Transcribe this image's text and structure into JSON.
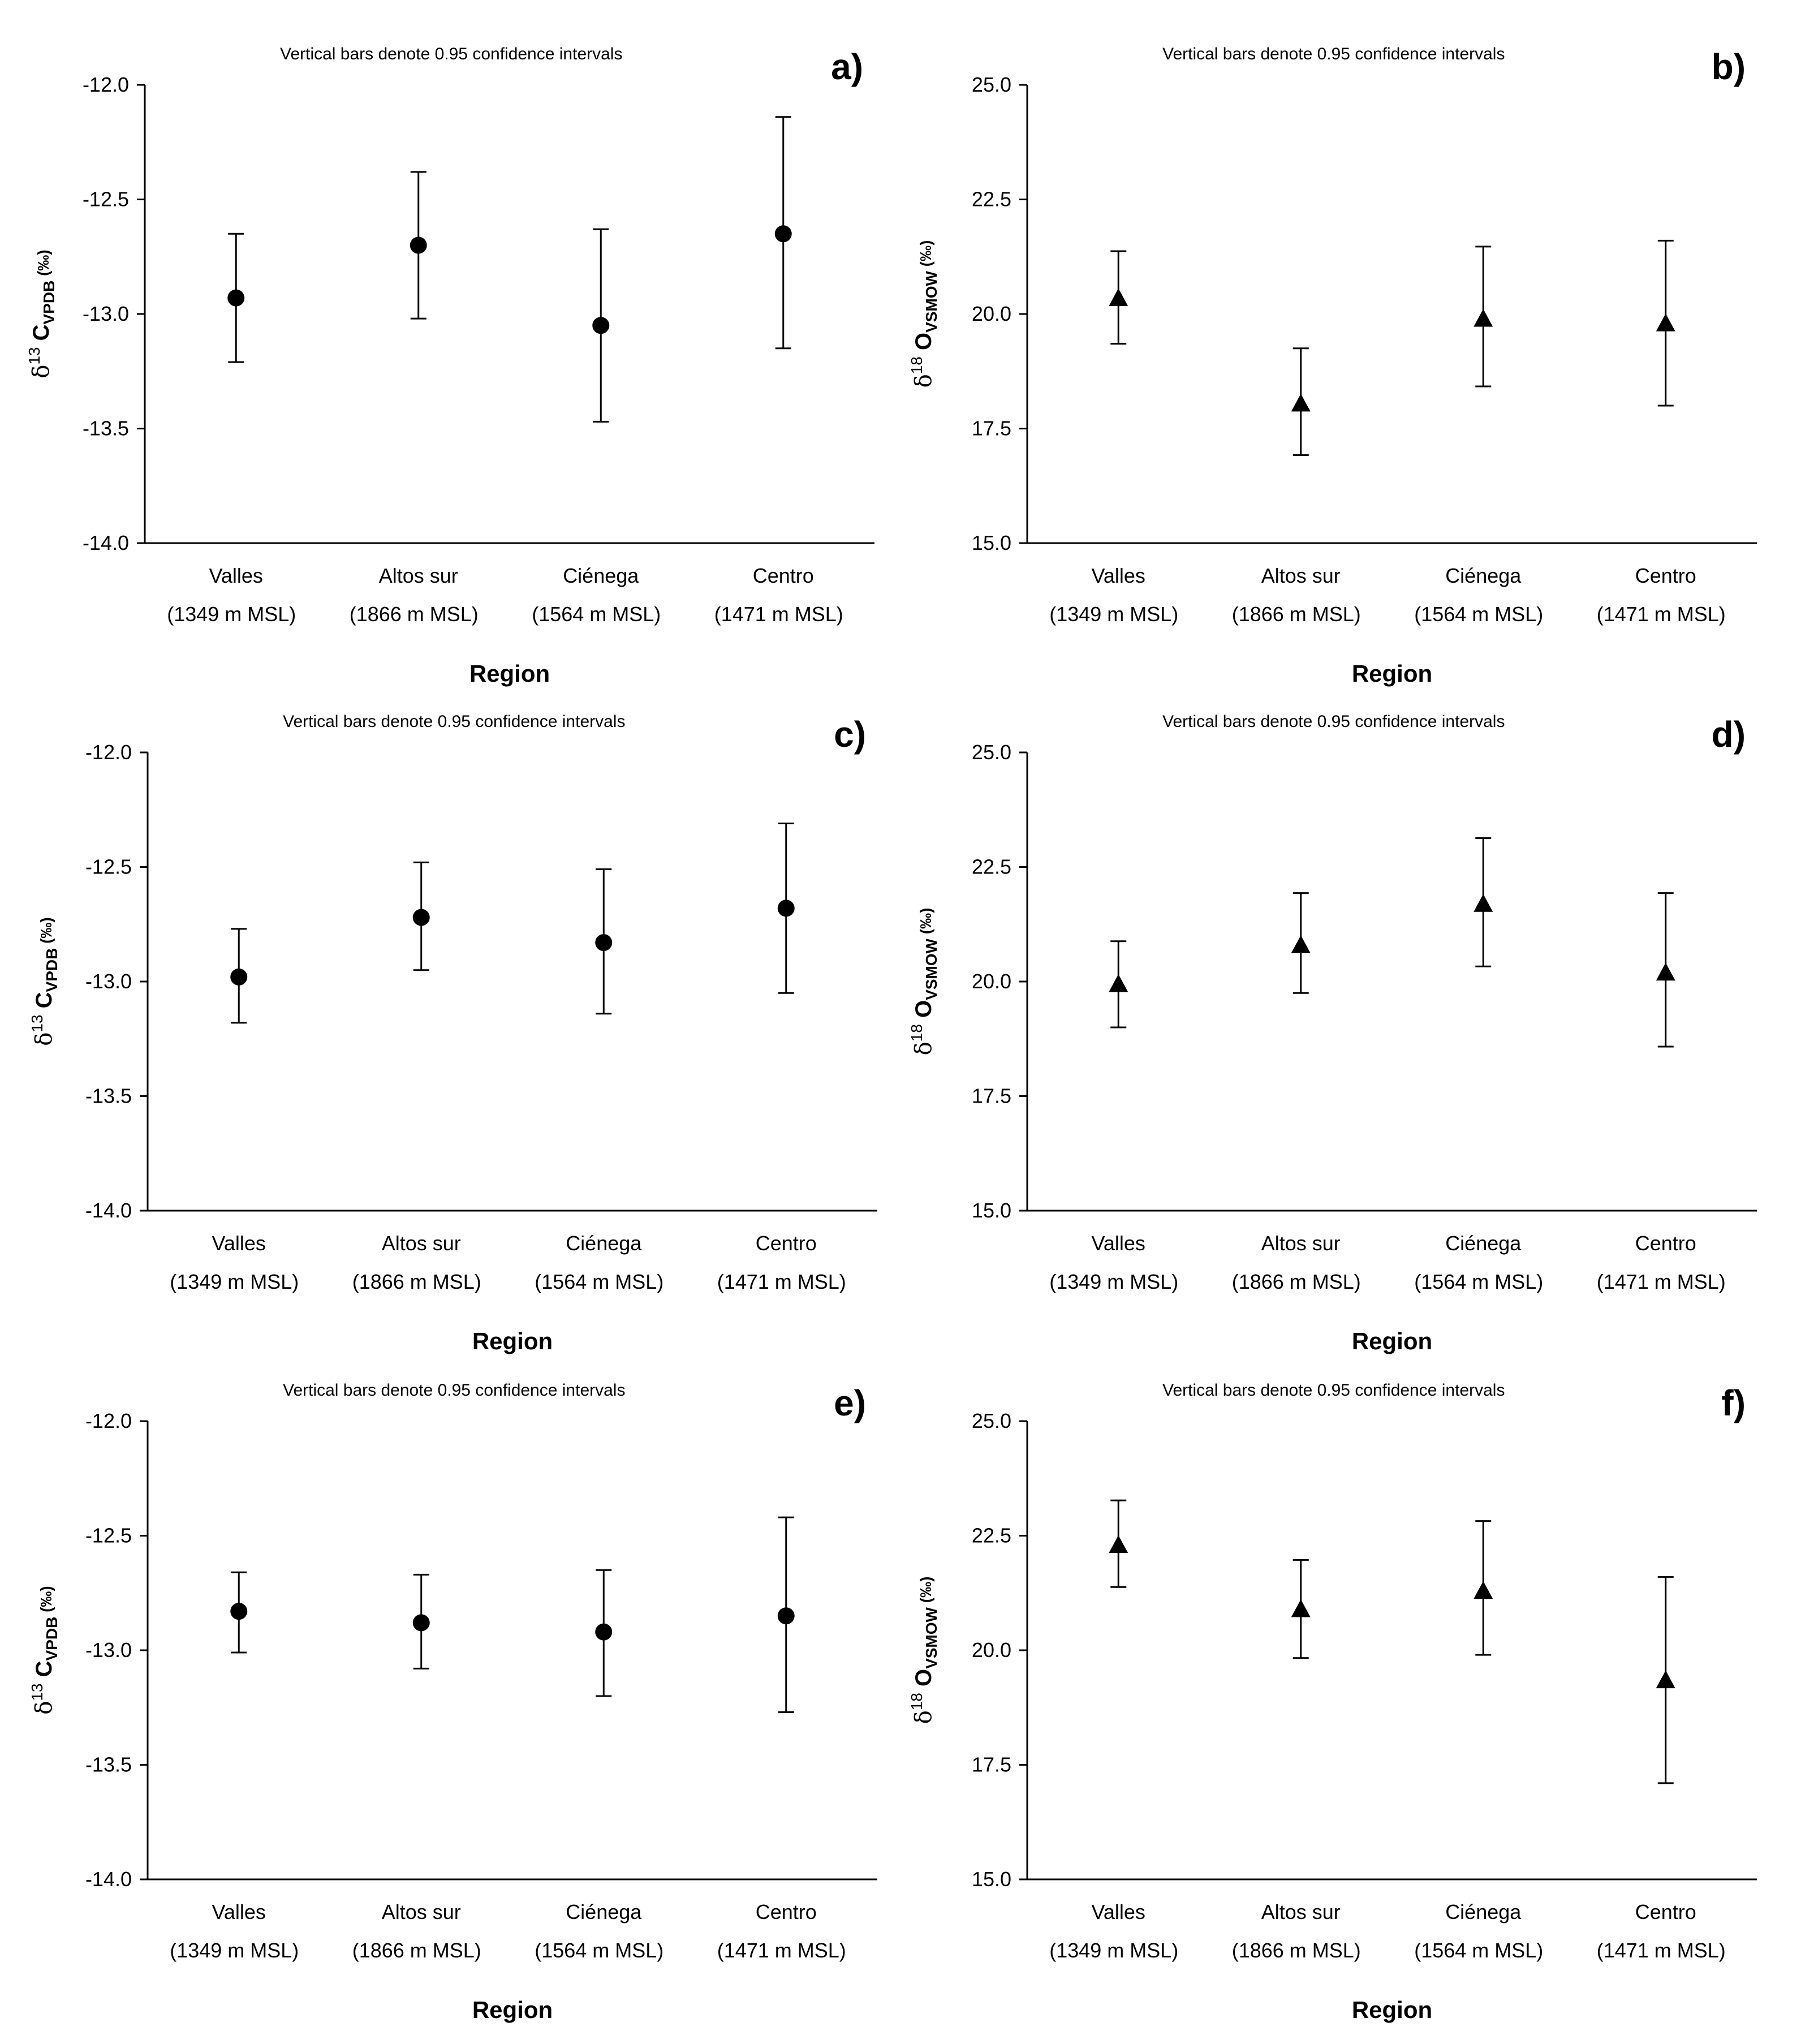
{
  "chart_data": [
    {
      "panel": "a)",
      "type": "scatter",
      "note": "Vertical bars denote 0.95 confidence intervals",
      "categories": [
        "Valles",
        "Altos sur",
        "Ciénega",
        "Centro"
      ],
      "sublabels": [
        "(1349 m MSL)",
        "(1866 m MSL)",
        "(1564 m MSL)",
        "(1471 m MSL)"
      ],
      "xlabel": "Region",
      "ylabel": {
        "prefix": "δ",
        "sup": "13",
        "main": " C",
        "sub": "VPDB",
        "suffix": " (‰)"
      },
      "ylim": [
        -14.0,
        -12.0
      ],
      "yticks": [
        "-14.0",
        "-13.5",
        "-13.0",
        "-12.5",
        "-12.0"
      ],
      "marker": "circle",
      "values": [
        -12.93,
        -12.7,
        -13.05,
        -12.65
      ],
      "ci_low": [
        -13.21,
        -13.02,
        -13.47,
        -13.15
      ],
      "ci_high": [
        -12.65,
        -12.38,
        -12.63,
        -12.14
      ]
    },
    {
      "panel": "b)",
      "type": "scatter",
      "note": "Vertical bars denote 0.95 confidence intervals",
      "categories": [
        "Valles",
        "Altos sur",
        "Ciénega",
        "Centro"
      ],
      "sublabels": [
        "(1349 m MSL)",
        "(1866 m MSL)",
        "(1564 m MSL)",
        "(1471 m MSL)"
      ],
      "xlabel": "Region",
      "ylabel": {
        "prefix": "δ",
        "sup": "18",
        "main": " O",
        "sub": "VSMOW",
        "suffix": " (‰)"
      },
      "ylim": [
        15.0,
        25.0
      ],
      "yticks": [
        "15.0",
        "17.5",
        "20.0",
        "22.5",
        "25.0"
      ],
      "marker": "triangle",
      "values": [
        20.35,
        18.05,
        19.9,
        19.8
      ],
      "ci_low": [
        19.35,
        16.92,
        18.42,
        18.0
      ],
      "ci_high": [
        21.37,
        19.25,
        21.47,
        21.6
      ]
    },
    {
      "panel": "c)",
      "type": "scatter",
      "note": "Vertical bars denote 0.95 confidence intervals",
      "categories": [
        "Valles",
        "Altos sur",
        "Ciénega",
        "Centro"
      ],
      "sublabels": [
        "(1349 m MSL)",
        "(1866 m MSL)",
        "(1564 m MSL)",
        "(1471 m MSL)"
      ],
      "xlabel": "Region",
      "ylabel": {
        "prefix": "δ",
        "sup": "13",
        "main": " C",
        "sub": "VPDB",
        "suffix": " (‰)"
      },
      "ylim": [
        -14.0,
        -12.0
      ],
      "yticks": [
        "-14.0",
        "-13.5",
        "-13.0",
        "-12.5",
        "-12.0"
      ],
      "marker": "circle",
      "values": [
        -12.98,
        -12.72,
        -12.83,
        -12.68
      ],
      "ci_low": [
        -13.18,
        -12.95,
        -13.14,
        -13.05
      ],
      "ci_high": [
        -12.77,
        -12.48,
        -12.51,
        -12.31
      ]
    },
    {
      "panel": "d)",
      "type": "scatter",
      "note": "Vertical bars denote 0.95 confidence intervals",
      "categories": [
        "Valles",
        "Altos sur",
        "Ciénega",
        "Centro"
      ],
      "sublabels": [
        "(1349 m MSL)",
        "(1866 m MSL)",
        "(1564 m MSL)",
        "(1471 m MSL)"
      ],
      "xlabel": "Region",
      "ylabel": {
        "prefix": "δ",
        "sup": "18",
        "main": " O",
        "sub": "VSMOW",
        "suffix": " (‰)"
      },
      "ylim": [
        15.0,
        25.0
      ],
      "yticks": [
        "15.0",
        "17.5",
        "20.0",
        "22.5",
        "25.0"
      ],
      "marker": "triangle",
      "values": [
        19.95,
        20.8,
        21.7,
        20.2
      ],
      "ci_low": [
        19.0,
        19.75,
        20.33,
        18.58
      ],
      "ci_high": [
        20.88,
        21.93,
        23.13,
        21.93
      ]
    },
    {
      "panel": "e)",
      "type": "scatter",
      "note": "Vertical bars denote 0.95 confidence intervals",
      "categories": [
        "Valles",
        "Altos sur",
        "Ciénega",
        "Centro"
      ],
      "sublabels": [
        "(1349 m MSL)",
        "(1866 m MSL)",
        "(1564 m MSL)",
        "(1471 m MSL)"
      ],
      "xlabel": "Region",
      "ylabel": {
        "prefix": "δ",
        "sup": "13",
        "main": " C",
        "sub": "VPDB",
        "suffix": " (‰)"
      },
      "ylim": [
        -14.0,
        -12.0
      ],
      "yticks": [
        "-14.0",
        "-13.5",
        "-13.0",
        "-12.5",
        "-12.0"
      ],
      "marker": "circle",
      "values": [
        -12.83,
        -12.88,
        -12.92,
        -12.85
      ],
      "ci_low": [
        -13.01,
        -13.08,
        -13.2,
        -13.27
      ],
      "ci_high": [
        -12.66,
        -12.67,
        -12.65,
        -12.42
      ]
    },
    {
      "panel": "f)",
      "type": "scatter",
      "note": "Vertical bars denote 0.95 confidence intervals",
      "categories": [
        "Valles",
        "Altos sur",
        "Ciénega",
        "Centro"
      ],
      "sublabels": [
        "(1349 m MSL)",
        "(1866 m MSL)",
        "(1564 m MSL)",
        "(1471 m MSL)"
      ],
      "xlabel": "Region",
      "ylabel": {
        "prefix": "δ",
        "sup": "18",
        "main": " O",
        "sub": "VSMOW",
        "suffix": " (‰)"
      },
      "ylim": [
        15.0,
        25.0
      ],
      "yticks": [
        "15.0",
        "17.5",
        "20.0",
        "22.5",
        "25.0"
      ],
      "marker": "triangle",
      "values": [
        22.3,
        20.9,
        21.3,
        19.35
      ],
      "ci_low": [
        21.38,
        19.83,
        19.9,
        17.1
      ],
      "ci_high": [
        23.27,
        21.97,
        22.82,
        21.6
      ]
    }
  ]
}
